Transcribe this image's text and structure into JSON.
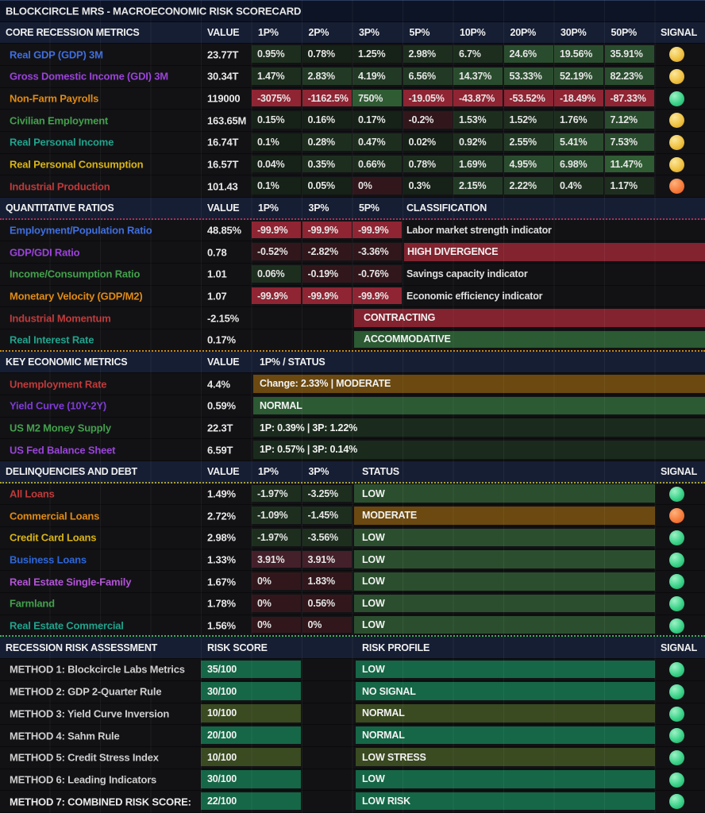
{
  "title": "BLOCKCIRCLE MRS - MACROECONOMIC RISK SCORECARD",
  "colors": {
    "tones": {
      "g0": "#162117",
      "g1": "#1d2e1f",
      "g15": "#223a25",
      "g2": "#2a4c2e",
      "g3": "#2f5c33",
      "r0": "#31171c",
      "r1": "#44202a",
      "r2": "#8f2433"
    },
    "bars": {
      "red": "#82232f",
      "green": "#2b5a33",
      "dark": "#1a2b1d",
      "brown": "#6b4910",
      "low": "#2b4f2e",
      "tg": "#156747",
      "ol": "#3a4a21"
    },
    "signals": {
      "green": {
        "hl": "#9ff2c6",
        "base": "#3bd389",
        "edge": "#1f9d62"
      },
      "yellow": {
        "hl": "#fbe79c",
        "base": "#f0c243",
        "edge": "#cf9a22"
      },
      "orange": {
        "hl": "#fdb27d",
        "base": "#f77c3c",
        "edge": "#e05a1e"
      }
    }
  },
  "sections": [
    {
      "type": "core",
      "header": {
        "label": "CORE RECESSION METRICS",
        "value_col": "VALUE",
        "pct_cols": [
          "1P%",
          "2P%",
          "3P%",
          "5P%",
          "10P%",
          "20P%",
          "30P%",
          "50P%"
        ],
        "signal_col": "SIGNAL"
      },
      "rows": [
        {
          "label": "Real GDP (GDP) 3M",
          "label_color": "#3f6ede",
          "value": "23.77T",
          "signal": "yellow",
          "cells": [
            [
              "0.95%",
              "g1"
            ],
            [
              "0.78%",
              "g0"
            ],
            [
              "1.25%",
              "g0"
            ],
            [
              "2.98%",
              "g1"
            ],
            [
              "6.7%",
              "g1"
            ],
            [
              "24.6%",
              "g2"
            ],
            [
              "19.56%",
              "g2"
            ],
            [
              "35.91%",
              "g2"
            ]
          ]
        },
        {
          "label": "Gross Domestic Income (GDI) 3M",
          "label_color": "#9a43d8",
          "value": "30.34T",
          "signal": "yellow",
          "cells": [
            [
              "1.47%",
              "g1"
            ],
            [
              "2.83%",
              "g15"
            ],
            [
              "4.19%",
              "g15"
            ],
            [
              "6.56%",
              "g15"
            ],
            [
              "14.37%",
              "g2"
            ],
            [
              "53.33%",
              "g2"
            ],
            [
              "52.19%",
              "g2"
            ],
            [
              "82.23%",
              "g2"
            ]
          ]
        },
        {
          "label": "Non-Farm Payrolls",
          "label_color": "#e08a15",
          "value": "119000",
          "signal": "green",
          "cells": [
            [
              "-3075%",
              "r2"
            ],
            [
              "-1162.5%",
              "r2"
            ],
            [
              "750%",
              "g3"
            ],
            [
              "-19.05%",
              "r2"
            ],
            [
              "-43.87%",
              "r2"
            ],
            [
              "-53.52%",
              "r2"
            ],
            [
              "-18.49%",
              "r2"
            ],
            [
              "-87.33%",
              "r2"
            ]
          ]
        },
        {
          "label": "Civilian Employment",
          "label_color": "#43a04c",
          "value": "163.65M",
          "signal": "yellow",
          "cells": [
            [
              "0.15%",
              "g0"
            ],
            [
              "0.16%",
              "g0"
            ],
            [
              "0.17%",
              "g0"
            ],
            [
              "-0.2%",
              "r0"
            ],
            [
              "1.53%",
              "g1"
            ],
            [
              "1.52%",
              "g1"
            ],
            [
              "1.76%",
              "g1"
            ],
            [
              "7.12%",
              "g2"
            ]
          ]
        },
        {
          "label": "Real Personal Income",
          "label_color": "#21a38c",
          "value": "16.74T",
          "signal": "yellow",
          "cells": [
            [
              "0.1%",
              "g0"
            ],
            [
              "0.28%",
              "g1"
            ],
            [
              "0.47%",
              "g1"
            ],
            [
              "0.02%",
              "g0"
            ],
            [
              "0.92%",
              "g1"
            ],
            [
              "2.55%",
              "g15"
            ],
            [
              "5.41%",
              "g2"
            ],
            [
              "7.53%",
              "g2"
            ]
          ]
        },
        {
          "label": "Real Personal Consumption",
          "label_color": "#d9b416",
          "value": "16.57T",
          "signal": "yellow",
          "cells": [
            [
              "0.04%",
              "g0"
            ],
            [
              "0.35%",
              "g1"
            ],
            [
              "0.66%",
              "g1"
            ],
            [
              "0.78%",
              "g1"
            ],
            [
              "1.69%",
              "g15"
            ],
            [
              "4.95%",
              "g2"
            ],
            [
              "6.98%",
              "g2"
            ],
            [
              "11.47%",
              "g3"
            ]
          ]
        },
        {
          "label": "Industrial Production",
          "label_color": "#c03a3a",
          "value": "101.43",
          "signal": "orange",
          "cells": [
            [
              "0.1%",
              "g0"
            ],
            [
              "0.05%",
              "g0"
            ],
            [
              "0%",
              "r0"
            ],
            [
              "0.3%",
              "g0"
            ],
            [
              "2.15%",
              "g15"
            ],
            [
              "2.22%",
              "g15"
            ],
            [
              "0.4%",
              "g1"
            ],
            [
              "1.17%",
              "g1"
            ]
          ]
        }
      ]
    },
    {
      "type": "ratios",
      "header": {
        "label": "QUANTITATIVE RATIOS",
        "value_col": "VALUE",
        "pct_cols": [
          "1P%",
          "3P%",
          "5P%"
        ],
        "class_col": "CLASSIFICATION",
        "header_dotted": "dot-pink"
      },
      "rows": [
        {
          "label": "Employment/Population Ratio",
          "label_color": "#3f6ede",
          "value": "48.85%",
          "cells": [
            [
              "-99.9%",
              "r2"
            ],
            [
              "-99.9%",
              "r2"
            ],
            [
              "-99.9%",
              "r2"
            ]
          ],
          "classification": {
            "text": "Labor market strength indicator",
            "style": "plain"
          }
        },
        {
          "label": "GDP/GDI Ratio",
          "label_color": "#9a43d8",
          "value": "0.78",
          "cells": [
            [
              "-0.52%",
              "r0"
            ],
            [
              "-2.82%",
              "r0"
            ],
            [
              "-3.36%",
              "r0"
            ]
          ],
          "classification": {
            "text": "HIGH DIVERGENCE",
            "style": "red",
            "span": "class"
          }
        },
        {
          "label": "Income/Consumption Ratio",
          "label_color": "#43a04c",
          "value": "1.01",
          "cells": [
            [
              "0.06%",
              "g1"
            ],
            [
              "-0.19%",
              "r0"
            ],
            [
              "-0.76%",
              "r0"
            ]
          ],
          "classification": {
            "text": "Savings capacity indicator",
            "style": "plain"
          }
        },
        {
          "label": "Monetary Velocity (GDP/M2)",
          "label_color": "#e08a15",
          "value": "1.07",
          "cells": [
            [
              "-99.9%",
              "r2"
            ],
            [
              "-99.9%",
              "r2"
            ],
            [
              "-99.9%",
              "r2"
            ]
          ],
          "classification": {
            "text": "Economic efficiency indicator",
            "style": "plain"
          }
        },
        {
          "label": "Industrial Momentum",
          "label_color": "#c03a3a",
          "value": "-2.15%",
          "cells": [],
          "classification": {
            "text": "CONTRACTING",
            "style": "red",
            "span": "col5"
          }
        },
        {
          "label": "Real Interest Rate",
          "label_color": "#21a38c",
          "value": "0.17%",
          "cells": [],
          "classification": {
            "text": "ACCOMMODATIVE",
            "style": "green",
            "span": "col5"
          },
          "row_dotted": "dot-orange"
        }
      ]
    },
    {
      "type": "key",
      "header": {
        "label": "KEY ECONOMIC METRICS",
        "value_col": "VALUE",
        "status_col": "1P% / STATUS"
      },
      "rows": [
        {
          "label": "Unemployment Rate",
          "label_color": "#c03a3a",
          "value": "4.4%",
          "status": {
            "text": "Change: 2.33% | MODERATE",
            "style": "brown"
          }
        },
        {
          "label": "Yield Curve (10Y-2Y)",
          "label_color": "#7e3bd4",
          "value": "0.59%",
          "status": {
            "text": "NORMAL",
            "style": "green"
          }
        },
        {
          "label": "US M2 Money Supply",
          "label_color": "#43a04c",
          "value": "22.3T",
          "status": {
            "text": "1P: 0.39% | 3P: 1.22%",
            "style": "dark"
          }
        },
        {
          "label": "US Fed Balance Sheet",
          "label_color": "#9a43d8",
          "value": "6.59T",
          "status": {
            "text": "1P: 0.57% | 3P: 0.14%",
            "style": "dark"
          }
        }
      ]
    },
    {
      "type": "delinq",
      "header": {
        "label": "DELINQUENCIES AND DEBT",
        "value_col": "VALUE",
        "pct_cols": [
          "1P%",
          "3P%"
        ],
        "status_col": "STATUS",
        "signal_col": "SIGNAL",
        "header_dotted": "dot-yellow"
      },
      "rows": [
        {
          "label": "All Loans",
          "label_color": "#c03a3a",
          "value": "1.49%",
          "signal": "green",
          "cells": [
            [
              "-1.97%",
              "g1"
            ],
            [
              "-3.25%",
              "g1"
            ]
          ],
          "status": {
            "text": "LOW",
            "style": "low"
          }
        },
        {
          "label": "Commercial Loans",
          "label_color": "#e08a15",
          "value": "2.72%",
          "signal": "orange",
          "cells": [
            [
              "-1.09%",
              "g1"
            ],
            [
              "-1.45%",
              "g1"
            ]
          ],
          "status": {
            "text": "MODERATE",
            "style": "brown"
          }
        },
        {
          "label": "Credit Card Loans",
          "label_color": "#d9b416",
          "value": "2.98%",
          "signal": "green",
          "cells": [
            [
              "-1.97%",
              "g1"
            ],
            [
              "-3.56%",
              "g1"
            ]
          ],
          "status": {
            "text": "LOW",
            "style": "low"
          }
        },
        {
          "label": "Business Loans",
          "label_color": "#2e66d8",
          "value": "1.33%",
          "signal": "green",
          "cells": [
            [
              "3.91%",
              "r1"
            ],
            [
              "3.91%",
              "r1"
            ]
          ],
          "status": {
            "text": "LOW",
            "style": "low"
          }
        },
        {
          "label": "Real Estate Single-Family",
          "label_color": "#b353d6",
          "value": "1.67%",
          "signal": "green",
          "cells": [
            [
              "0%",
              "r0"
            ],
            [
              "1.83%",
              "r0"
            ]
          ],
          "status": {
            "text": "LOW",
            "style": "low"
          }
        },
        {
          "label": "Farmland",
          "label_color": "#43a04c",
          "value": "1.78%",
          "signal": "green",
          "cells": [
            [
              "0%",
              "r0"
            ],
            [
              "0.56%",
              "r0"
            ]
          ],
          "status": {
            "text": "LOW",
            "style": "low"
          }
        },
        {
          "label": "Real Estate Commercial",
          "label_color": "#21a38c",
          "value": "1.56%",
          "signal": "green",
          "cells": [
            [
              "0%",
              "r0"
            ],
            [
              "0%",
              "r0"
            ]
          ],
          "status": {
            "text": "LOW",
            "style": "low"
          },
          "row_dotted": "dot-green"
        }
      ]
    },
    {
      "type": "risk",
      "header": {
        "label": "RECESSION RISK ASSESSMENT",
        "score_col": "RISK SCORE",
        "profile_col": "RISK PROFILE",
        "signal_col": "SIGNAL"
      },
      "rows": [
        {
          "label": "METHOD 1: Blockcircle Labs Metrics",
          "label_color": "#cfcfcf",
          "score": {
            "text": "35/100",
            "style": "tg"
          },
          "profile": {
            "text": "LOW",
            "style": "tg"
          },
          "signal": "green"
        },
        {
          "label": "METHOD 2: GDP 2-Quarter Rule",
          "label_color": "#cfcfcf",
          "score": {
            "text": "30/100",
            "style": "tg"
          },
          "profile": {
            "text": "NO SIGNAL",
            "style": "tg"
          },
          "signal": "green"
        },
        {
          "label": "METHOD 3: Yield Curve Inversion",
          "label_color": "#cfcfcf",
          "score": {
            "text": "10/100",
            "style": "ol"
          },
          "profile": {
            "text": "NORMAL",
            "style": "ol"
          },
          "signal": "green"
        },
        {
          "label": "METHOD 4: Sahm Rule",
          "label_color": "#cfcfcf",
          "score": {
            "text": "20/100",
            "style": "tg"
          },
          "profile": {
            "text": "NORMAL",
            "style": "tg"
          },
          "signal": "green"
        },
        {
          "label": "METHOD 5: Credit Stress Index",
          "label_color": "#cfcfcf",
          "score": {
            "text": "10/100",
            "style": "ol"
          },
          "profile": {
            "text": "LOW STRESS",
            "style": "ol"
          },
          "signal": "green"
        },
        {
          "label": "METHOD 6: Leading Indicators",
          "label_color": "#cfcfcf",
          "score": {
            "text": "30/100",
            "style": "tg"
          },
          "profile": {
            "text": "LOW",
            "style": "tg"
          },
          "signal": "green"
        },
        {
          "label": "METHOD 7: COMBINED RISK SCORE:",
          "label_color": "#ececec",
          "score": {
            "text": "22/100",
            "style": "tg"
          },
          "profile": {
            "text": "LOW RISK",
            "style": "tg"
          },
          "signal": "green"
        }
      ]
    }
  ]
}
